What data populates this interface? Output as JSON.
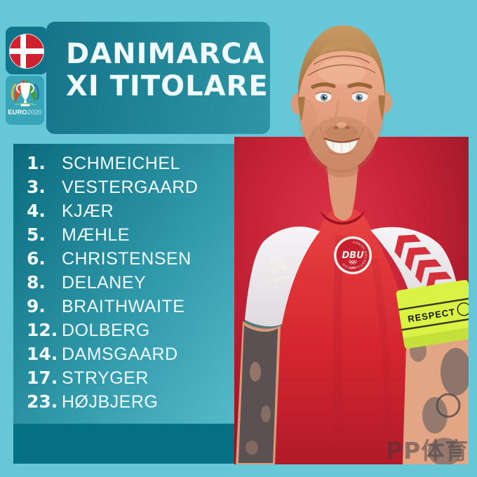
{
  "header": {
    "title_line1": "DANIMARCA",
    "title_line2": "XI TITOLARE"
  },
  "tournament": {
    "euro": "EURO",
    "year": "2020"
  },
  "flag": {
    "icon": "denmark-flag-icon"
  },
  "lineup": {
    "players": [
      {
        "number": "1.",
        "name": "SCHMEICHEL"
      },
      {
        "number": "3.",
        "name": "VESTERGAARD"
      },
      {
        "number": "4.",
        "name": "KJÆR"
      },
      {
        "number": "5.",
        "name": "MÆHLE"
      },
      {
        "number": "6.",
        "name": "CHRISTENSEN"
      },
      {
        "number": "8.",
        "name": "DELANEY"
      },
      {
        "number": "9.",
        "name": "BRAITHWAITE"
      },
      {
        "number": "12.",
        "name": "DOLBERG"
      },
      {
        "number": "14.",
        "name": "DAMSGAARD"
      },
      {
        "number": "17.",
        "name": "STRYGER"
      },
      {
        "number": "23.",
        "name": "HØJBJERG"
      }
    ]
  },
  "jersey": {
    "brand": "hummel",
    "crest": "DBU",
    "crest_year": "1889",
    "crest_ring": "DANSK BOLDSPIL-UNION",
    "armband": "RESPECT"
  },
  "watermark": "PP体育",
  "colors": {
    "background": "#66c7d6",
    "band": "#1b8296",
    "panel_dark": "#0b6b7e",
    "panel_light": "#54bac8",
    "photo_red": "#c22134",
    "jersey_red": "#d5262f",
    "armband": "#d9f243",
    "flag_red": "#d2212e"
  }
}
